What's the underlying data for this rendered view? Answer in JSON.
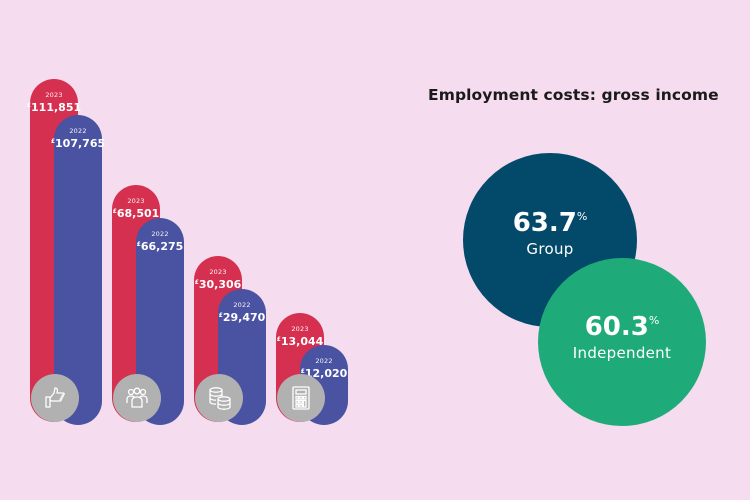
{
  "chart_data": [
    {
      "type": "bar",
      "title": "",
      "xlabel": "",
      "ylabel": "",
      "currency_symbol": "£",
      "categories": [
        "thumbs-up",
        "people",
        "coins",
        "calculator"
      ],
      "category_icons": [
        "thumbs-up-icon",
        "people-icon",
        "coins-icon",
        "calculator-icon"
      ],
      "series": [
        {
          "name": "2023",
          "color": "#d5304f",
          "values": [
            111851,
            68501,
            30306,
            13044
          ],
          "labels": [
            "111,851",
            "68,501",
            "30,306",
            "13,044"
          ]
        },
        {
          "name": "2022",
          "color": "#4a52a2",
          "values": [
            107765,
            66275,
            29470,
            12020
          ],
          "labels": [
            "107,765",
            "66,275",
            "29,470",
            "12,020"
          ]
        }
      ],
      "legend": "none",
      "grid": false
    },
    {
      "type": "bubble",
      "title": "Employment costs: gross income",
      "items": [
        {
          "name": "Group",
          "value": 63.7,
          "display": "63.7",
          "unit": "%",
          "color": "#034a6a"
        },
        {
          "name": "Independent",
          "value": 60.3,
          "display": "60.3",
          "unit": "%",
          "color": "#1fab79"
        }
      ]
    }
  ]
}
